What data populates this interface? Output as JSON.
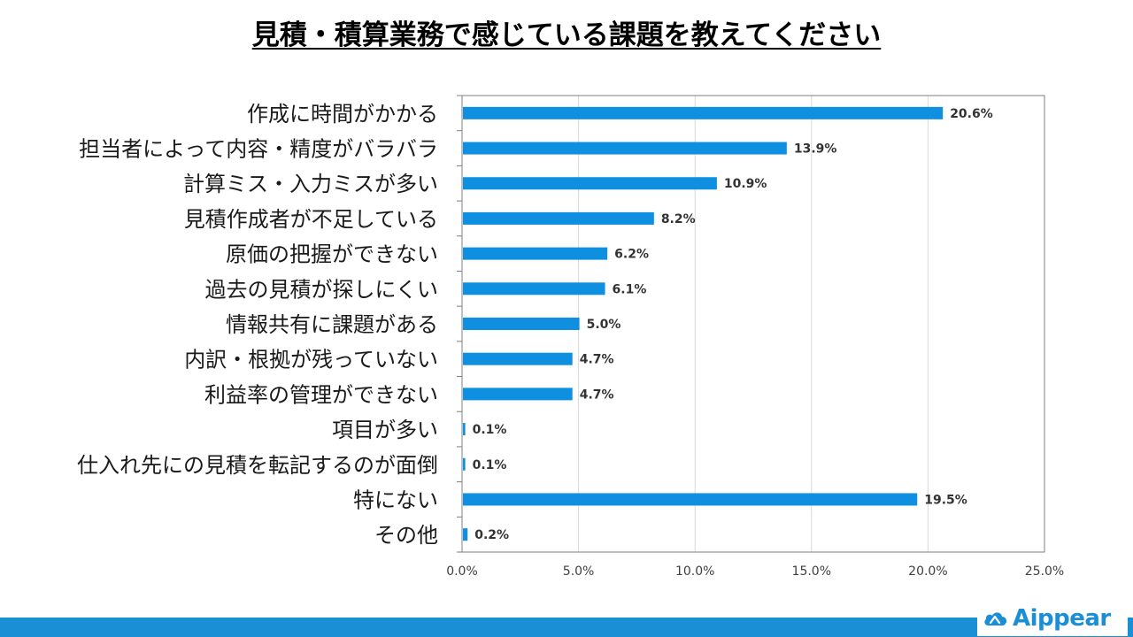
{
  "title": "見積・積算業務で感じている課題を教えてください",
  "logo": {
    "text": "Aippear"
  },
  "colors": {
    "bar": "#0f8fe0",
    "footer": "#1a8fd6",
    "grid": "#d9d9d9",
    "axis": "#7f7f7f"
  },
  "chart_data": {
    "type": "bar",
    "orientation": "horizontal",
    "categories": [
      "作成に時間がかかる",
      "担当者によって内容・精度がバラバラ",
      "計算ミス・入力ミスが多い",
      "見積作成者が不足している",
      "原価の把握ができない",
      "過去の見積が探しにくい",
      "情報共有に課題がある",
      "内訳・根拠が残っていない",
      "利益率の管理ができない",
      "項目が多い",
      "仕入れ先にの見積を転記するのが面倒",
      "特にない",
      "その他"
    ],
    "values": [
      20.6,
      13.9,
      10.9,
      8.2,
      6.2,
      6.1,
      5.0,
      4.7,
      4.7,
      0.1,
      0.1,
      19.5,
      0.2
    ],
    "value_labels": [
      "20.6%",
      "13.9%",
      "10.9%",
      "8.2%",
      "6.2%",
      "6.1%",
      "5.0%",
      "4.7%",
      "4.7%",
      "0.1%",
      "0.1%",
      "19.5%",
      "0.2%"
    ],
    "xlim": [
      0,
      25
    ],
    "xticks": [
      0,
      5,
      10,
      15,
      20,
      25
    ],
    "xtick_labels": [
      "0.0%",
      "5.0%",
      "10.0%",
      "15.0%",
      "20.0%",
      "25.0%"
    ],
    "xlabel": "",
    "ylabel": "",
    "grid": "vertical",
    "legend": "none"
  }
}
